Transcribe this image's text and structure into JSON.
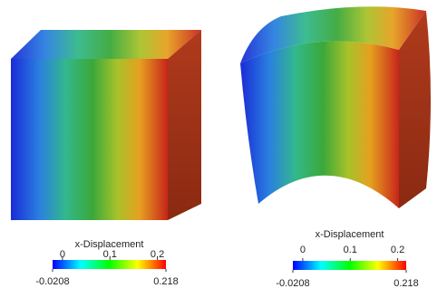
{
  "panels": [
    {
      "colorbar": {
        "title": "x-Displacement",
        "lim": [
          -0.0208,
          0.218
        ],
        "ticks": [
          0,
          0.1,
          0.2
        ]
      }
    },
    {
      "colorbar": {
        "title": "x-Displacement",
        "lim": [
          -0.0208,
          0.218
        ],
        "ticks": [
          0,
          0.1,
          0.2
        ]
      }
    }
  ]
}
